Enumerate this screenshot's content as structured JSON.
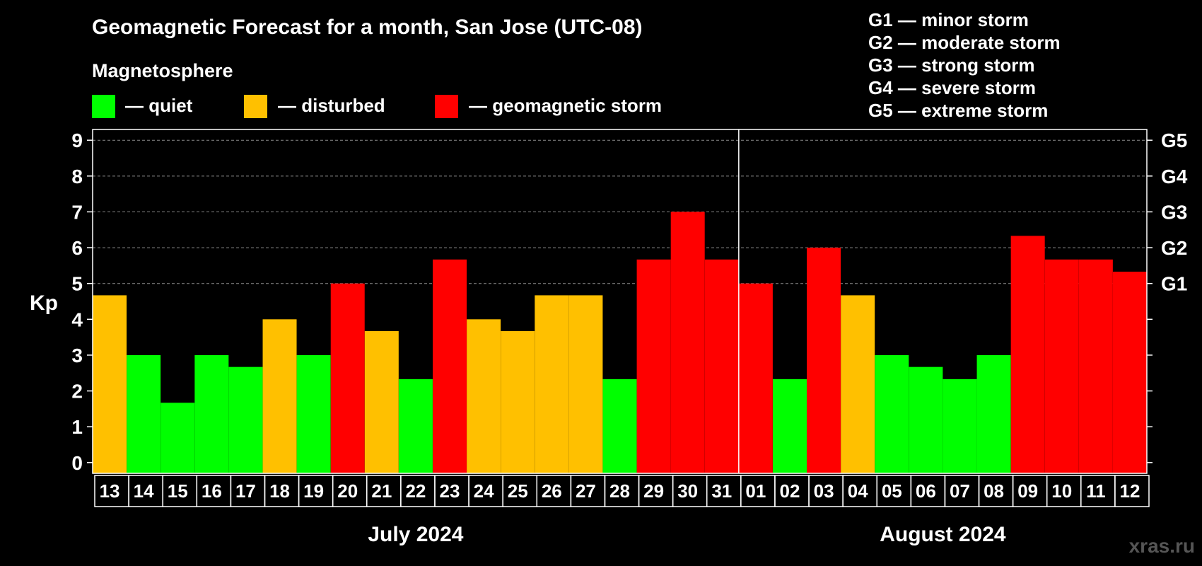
{
  "chart_data": {
    "type": "bar",
    "title": "Geomagnetic Forecast for a month, San Jose (UTC-08)",
    "legend_title": "Magnetosphere",
    "legend": [
      {
        "label": "— quiet",
        "color": "#00ff00"
      },
      {
        "label": "— disturbed",
        "color": "#ffc000"
      },
      {
        "label": "— geomagnetic storm",
        "color": "#ff0000"
      }
    ],
    "storm_scale": [
      "G1 — minor storm",
      "G2 — moderate storm",
      "G3 — strong storm",
      "G4 — severe storm",
      "G5 — extreme storm"
    ],
    "ylabel": "Kp",
    "ylim": [
      -0.3,
      9.3
    ],
    "yticks": [
      0,
      1,
      2,
      3,
      4,
      5,
      6,
      7,
      8,
      9
    ],
    "gridlines": [
      5,
      6,
      7,
      8,
      9
    ],
    "right_ticks": [
      {
        "value": 5,
        "label": "G1"
      },
      {
        "value": 6,
        "label": "G2"
      },
      {
        "value": 7,
        "label": "G3"
      },
      {
        "value": 8,
        "label": "G4"
      },
      {
        "value": 9,
        "label": "G5"
      }
    ],
    "categories": [
      "13",
      "14",
      "15",
      "16",
      "17",
      "18",
      "19",
      "20",
      "21",
      "22",
      "23",
      "24",
      "25",
      "26",
      "27",
      "28",
      "29",
      "30",
      "31",
      "01",
      "02",
      "03",
      "04",
      "05",
      "06",
      "07",
      "08",
      "09",
      "10",
      "11",
      "12"
    ],
    "values": [
      4.67,
      3.0,
      1.67,
      3.0,
      2.67,
      4.0,
      3.0,
      5.0,
      3.67,
      2.33,
      5.67,
      4.0,
      3.67,
      4.67,
      4.67,
      2.33,
      5.67,
      7.0,
      5.67,
      5.0,
      2.33,
      6.0,
      4.67,
      3.0,
      2.67,
      2.33,
      3.0,
      6.33,
      5.67,
      5.67,
      5.33
    ],
    "colors": {
      "quiet": "#00ff00",
      "disturbed": "#ffc000",
      "storm": "#ff0000"
    },
    "months": [
      {
        "label": "July 2024",
        "start": 0,
        "end": 18
      },
      {
        "label": "August 2024",
        "start": 19,
        "end": 30
      }
    ],
    "watermark": "xras.ru"
  }
}
